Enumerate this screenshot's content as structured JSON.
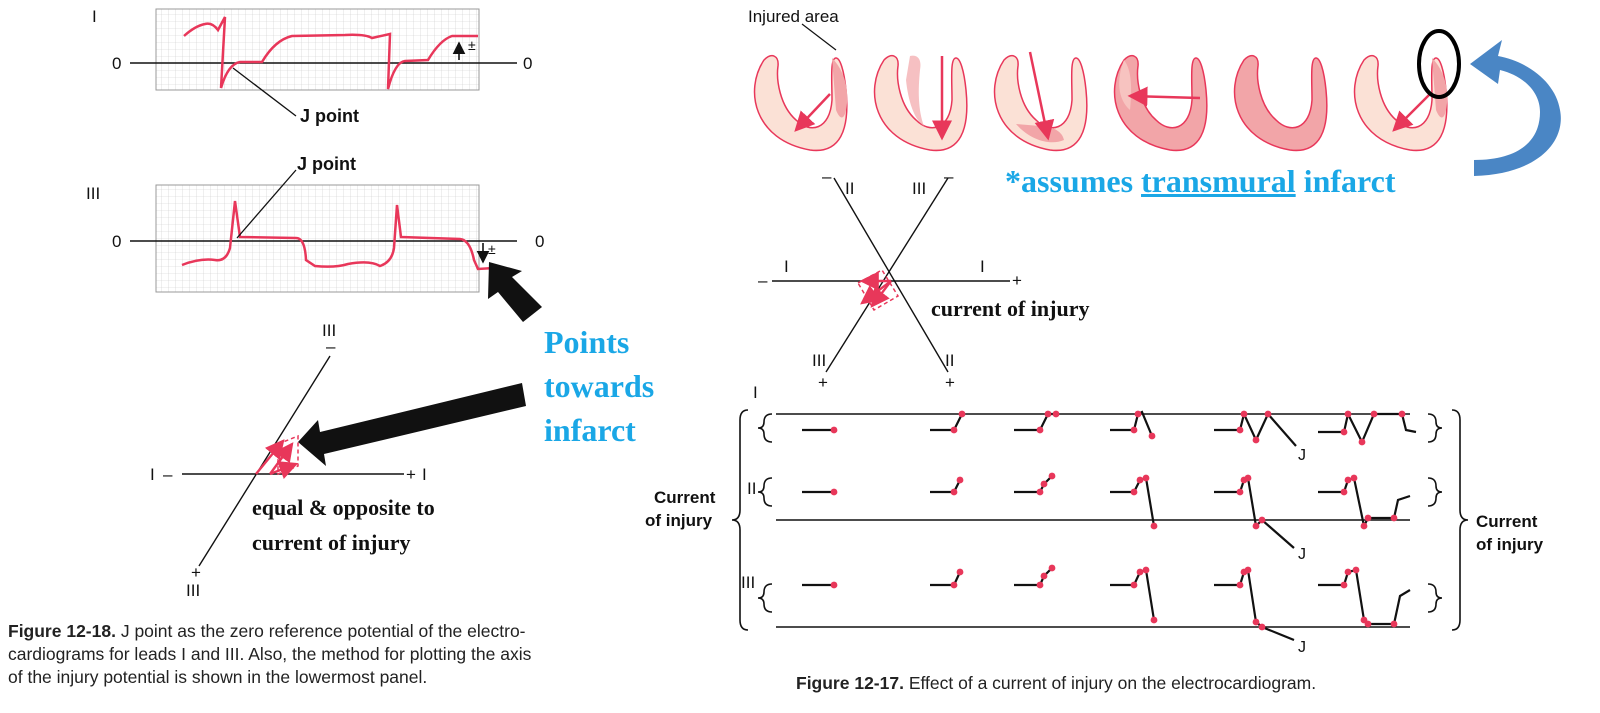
{
  "left_figure": {
    "lead_top": "I",
    "lead_mid": "III",
    "zero_label": "0",
    "j_point_label": "J point",
    "pm_label": "±",
    "axis": {
      "lead_I": "I",
      "lead_III": "III",
      "minus": "–",
      "plus": "+"
    },
    "points_towards_infarct": [
      "Points",
      "towards",
      "infarct"
    ],
    "equal_opposite": [
      "equal & opposite to",
      "current of injury"
    ],
    "caption_bold": "Figure 12-18.",
    "caption_lines": [
      " J point as the zero reference potential of the electro-",
      "cardiograms for leads I and III. Also, the method for plotting the axis",
      "of the injury potential is shown in the lowermost panel."
    ]
  },
  "right_figure": {
    "injured_area_label": "Injured area",
    "note_prefix": "*assumes ",
    "note_underlined": "transmural",
    "note_suffix": " infarct",
    "hex_axis": {
      "lead_I": "I",
      "lead_II": "II",
      "lead_III": "III",
      "minus": "–",
      "plus": "+"
    },
    "current_of_injury_text": "current of injury",
    "bracket_label_left": [
      "Current",
      "of injury"
    ],
    "bracket_label_right": [
      "Current",
      "of injury"
    ],
    "row_leads": [
      "I",
      "II",
      "III"
    ],
    "j_label": "J",
    "caption_bold": "Figure 12-17.",
    "caption_rest": " Effect of a current of injury on the electrocardiogram."
  },
  "colors": {
    "trace": "#e8375a",
    "highlight_blue": "#1aa7e6",
    "curved_arrow": "#4a86c5",
    "heart_fill": "#fbe1d6",
    "heart_injured": "#f2a5a8"
  }
}
